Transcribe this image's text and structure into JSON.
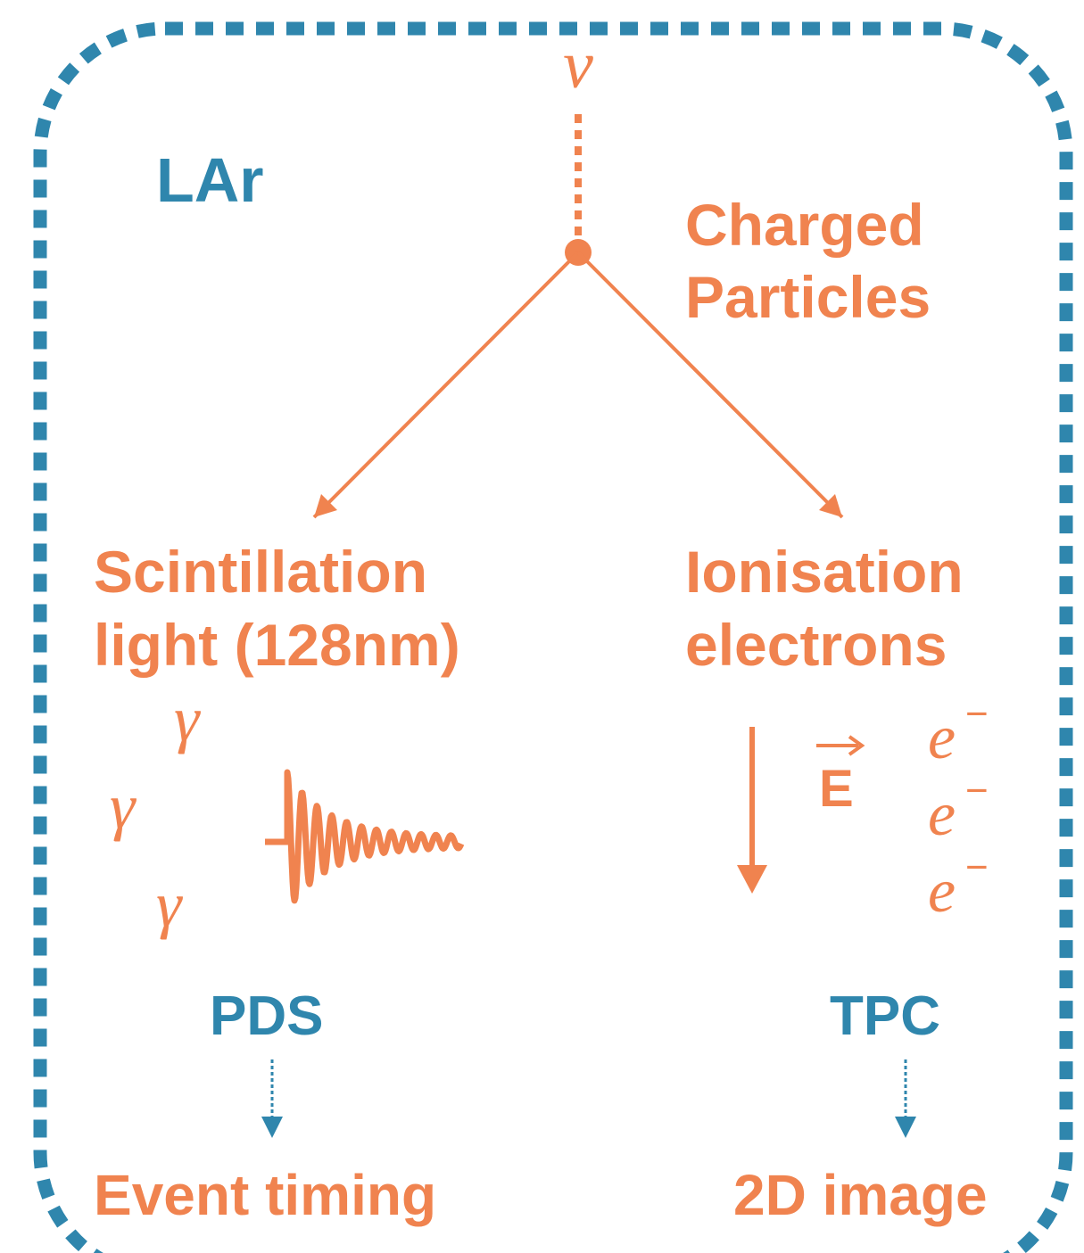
{
  "medium": "LAr",
  "neutrino": "ν",
  "charged_particles": {
    "lines": [
      "Charged",
      "Particles"
    ]
  },
  "scintillation": {
    "lines": [
      "Scintillation",
      "light (128nm)"
    ],
    "photons": [
      "γ",
      "γ",
      "γ"
    ]
  },
  "ionisation": {
    "lines": [
      "Ionisation",
      "electrons"
    ],
    "field": "E",
    "electrons": [
      {
        "base": "e",
        "sup": "−"
      },
      {
        "base": "e",
        "sup": "−"
      },
      {
        "base": "e",
        "sup": "−"
      }
    ]
  },
  "detectors": {
    "left": "PDS",
    "right": "TPC"
  },
  "outputs": {
    "left": "Event timing",
    "right": "2D image"
  }
}
